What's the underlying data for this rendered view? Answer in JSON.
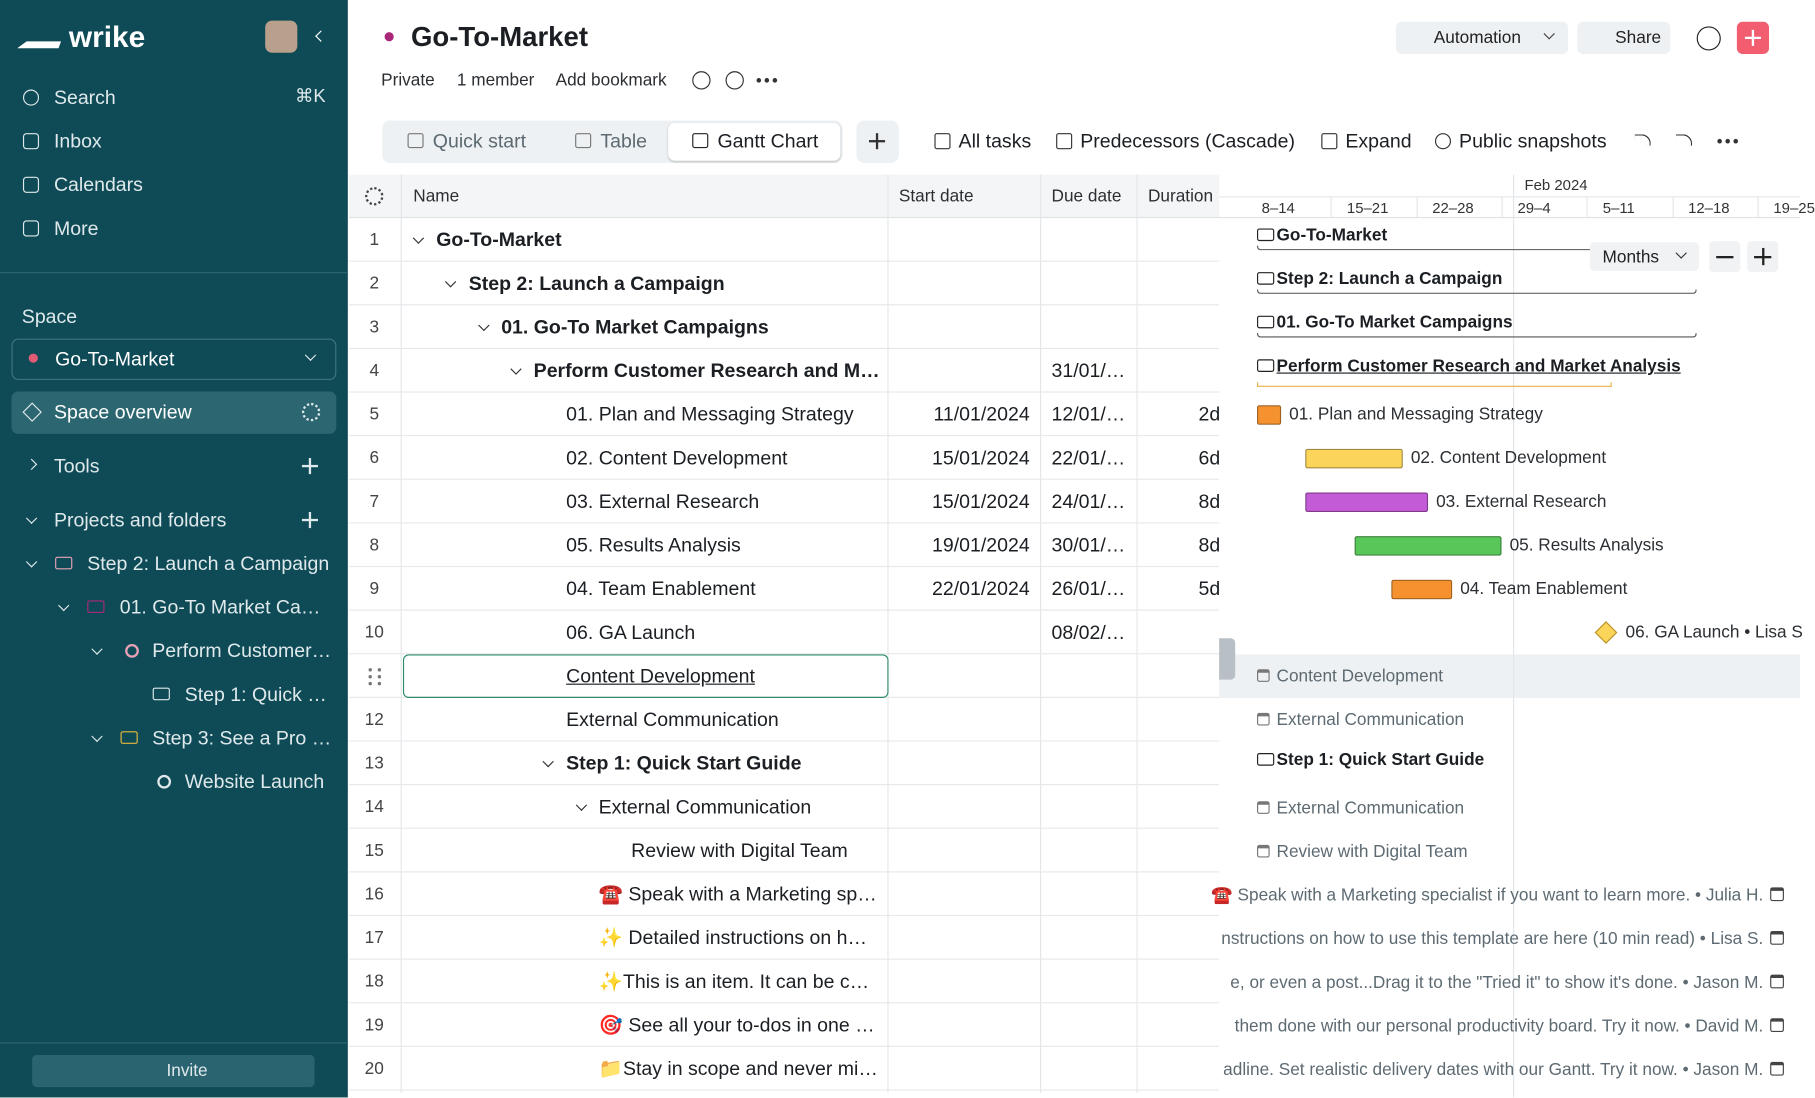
{
  "sidebar": {
    "logo": "wrike",
    "nav": [
      {
        "label": "Search",
        "shortcut": "⌘K"
      },
      {
        "label": "Inbox"
      },
      {
        "label": "Calendars"
      },
      {
        "label": "More"
      }
    ],
    "space_heading": "Space",
    "space_name": "Go-To-Market",
    "space_overview": "Space overview",
    "tools": "Tools",
    "projects_heading": "Projects and folders",
    "tree": [
      "Step 2: Launch a Campaign",
      "01. Go-To Market Ca…",
      "Perform Customer…",
      "Step 1: Quick …",
      "Step 3: See a Pro …",
      "Website Launch"
    ],
    "invite": "Invite"
  },
  "header": {
    "title": "Go-To-Market",
    "meta": [
      "Private",
      "1 member",
      "Add bookmark"
    ],
    "automation": "Automation",
    "share": "Share"
  },
  "views": {
    "tabs": [
      "Quick start",
      "Table",
      "Gantt Chart"
    ],
    "tools": [
      "All tasks",
      "Predecessors (Cascade)",
      "Expand",
      "Public snapshots"
    ]
  },
  "table": {
    "columns": [
      "Name",
      "Start date",
      "Due date",
      "Duration"
    ],
    "rows": [
      {
        "n": 1,
        "name": "Go-To-Market"
      },
      {
        "n": 2,
        "name": "Step 2: Launch a Campaign"
      },
      {
        "n": 3,
        "name": "01. Go-To Market Campaigns"
      },
      {
        "n": 4,
        "name": "Perform Customer Research and M…",
        "due": "31/01/…"
      },
      {
        "n": 5,
        "name": "01. Plan and Messaging Strategy",
        "start": "11/01/2024",
        "due": "12/01/…",
        "duration": "2d"
      },
      {
        "n": 6,
        "name": "02. Content Development",
        "start": "15/01/2024",
        "due": "22/01/…",
        "duration": "6d"
      },
      {
        "n": 7,
        "name": "03. External Research",
        "start": "15/01/2024",
        "due": "24/01/…",
        "duration": "8d"
      },
      {
        "n": 8,
        "name": "05. Results Analysis",
        "start": "19/01/2024",
        "due": "30/01/…",
        "duration": "8d"
      },
      {
        "n": 9,
        "name": "04. Team Enablement",
        "start": "22/01/2024",
        "due": "26/01/…",
        "duration": "5d"
      },
      {
        "n": 10,
        "name": "06. GA Launch",
        "due": "08/02/…"
      },
      {
        "name": "Content Development"
      },
      {
        "n": 12,
        "name": "External Communication"
      },
      {
        "n": 13,
        "name": "Step 1: Quick Start Guide"
      },
      {
        "n": 14,
        "name": "External Communication"
      },
      {
        "n": 15,
        "name": "Review with Digital Team"
      },
      {
        "n": 16,
        "name": "☎️ Speak with a Marketing sp…"
      },
      {
        "n": 17,
        "name": "✨ Detailed instructions on h…"
      },
      {
        "n": 18,
        "name": "✨This is an item. It can be c…"
      },
      {
        "n": 19,
        "name": "🎯 See all your to-dos in one …"
      },
      {
        "n": 20,
        "name": "📁Stay in scope and never mi…"
      }
    ]
  },
  "gantt": {
    "month": "Feb 2024",
    "weeks": [
      "8–14",
      "15–21",
      "22–28",
      "29–4",
      "5–11",
      "12–18",
      "19–25"
    ],
    "zoom": "Months",
    "items": [
      "Go-To-Market",
      "Step 2: Launch a Campaign",
      "01. Go-To Market Campaigns",
      "Perform Customer Research and Market Analysis",
      "01. Plan and Messaging Strategy",
      "02. Content Development",
      "03. External Research",
      "05. Results Analysis",
      "04. Team Enablement",
      "06. GA Launch • Lisa S",
      "Content Development",
      "External Communication",
      "Step 1: Quick Start Guide",
      "External Communication",
      "Review with Digital Team",
      "☎️ Speak with a Marketing specialist if you want to learn more. • Julia H.",
      "nstructions on how to use this template are here (10 min read) • Lisa S.",
      "e, or even a post...Drag it to the \"Tried it\" to show it's done. • Jason M.",
      "them done with our personal productivity board. Try it now. • David M.",
      "adline. Set realistic delivery dates with our Gantt. Try it now. • Jason M."
    ]
  }
}
